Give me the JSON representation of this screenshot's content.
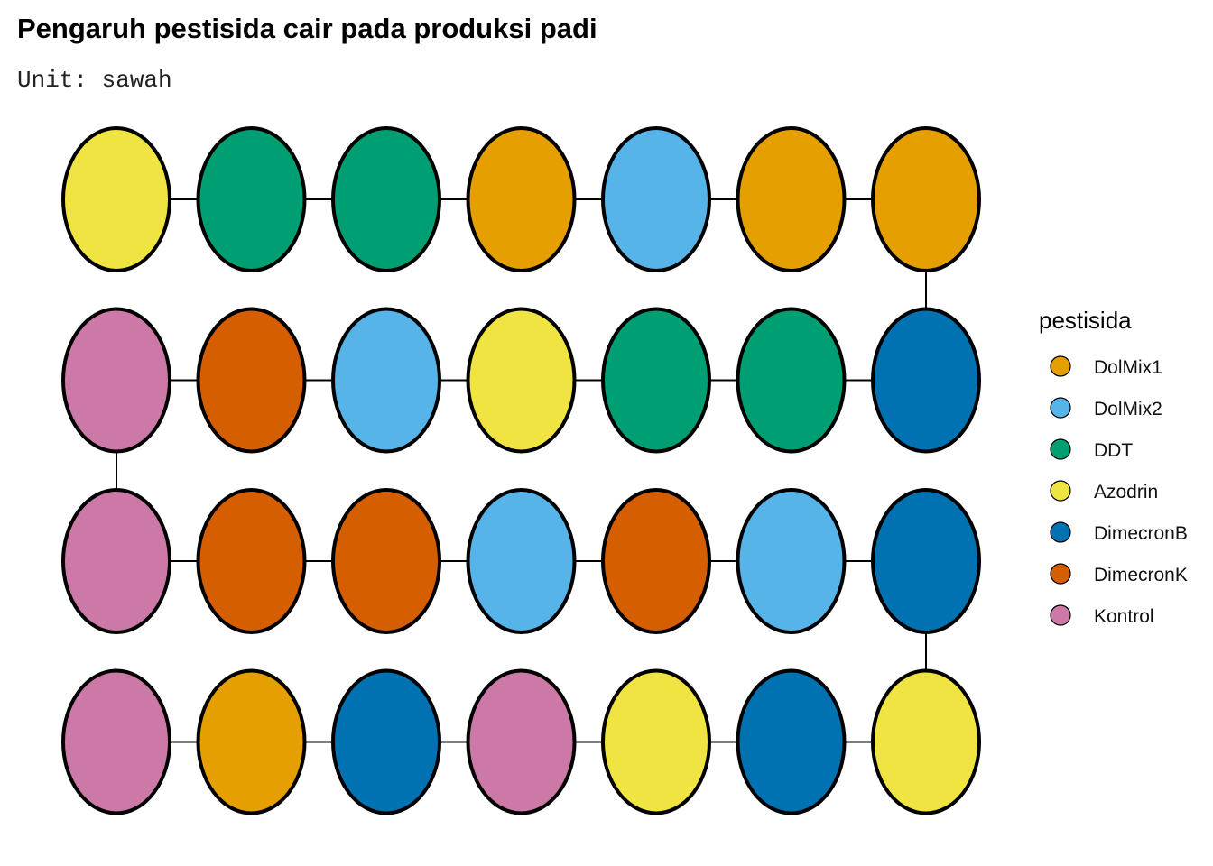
{
  "title": "Pengaruh pestisida cair pada produksi padi",
  "subtitle": "Unit: sawah",
  "legend": {
    "title": "pestisida",
    "items": [
      {
        "label": "DolMix1",
        "color": "#E69F00"
      },
      {
        "label": "DolMix2",
        "color": "#56B4E9"
      },
      {
        "label": "DDT",
        "color": "#009E73"
      },
      {
        "label": "Azodrin",
        "color": "#F0E442"
      },
      {
        "label": "DimecronB",
        "color": "#0072B2"
      },
      {
        "label": "DimecronK",
        "color": "#D55E00"
      },
      {
        "label": "Kontrol",
        "color": "#CC79A7"
      }
    ]
  },
  "grid": {
    "rows": [
      [
        "Azodrin",
        "DDT",
        "DDT",
        "DolMix1",
        "DolMix2",
        "DolMix1",
        "DolMix1"
      ],
      [
        "Kontrol",
        "DimecronK",
        "DolMix2",
        "Azodrin",
        "DDT",
        "DDT",
        "DimecronB"
      ],
      [
        "Kontrol",
        "DimecronK",
        "DimecronK",
        "DolMix2",
        "DimecronK",
        "DolMix2",
        "DimecronB"
      ],
      [
        "Kontrol",
        "DolMix1",
        "DimecronB",
        "Kontrol",
        "Azodrin",
        "DimecronB",
        "Azodrin"
      ]
    ]
  }
}
